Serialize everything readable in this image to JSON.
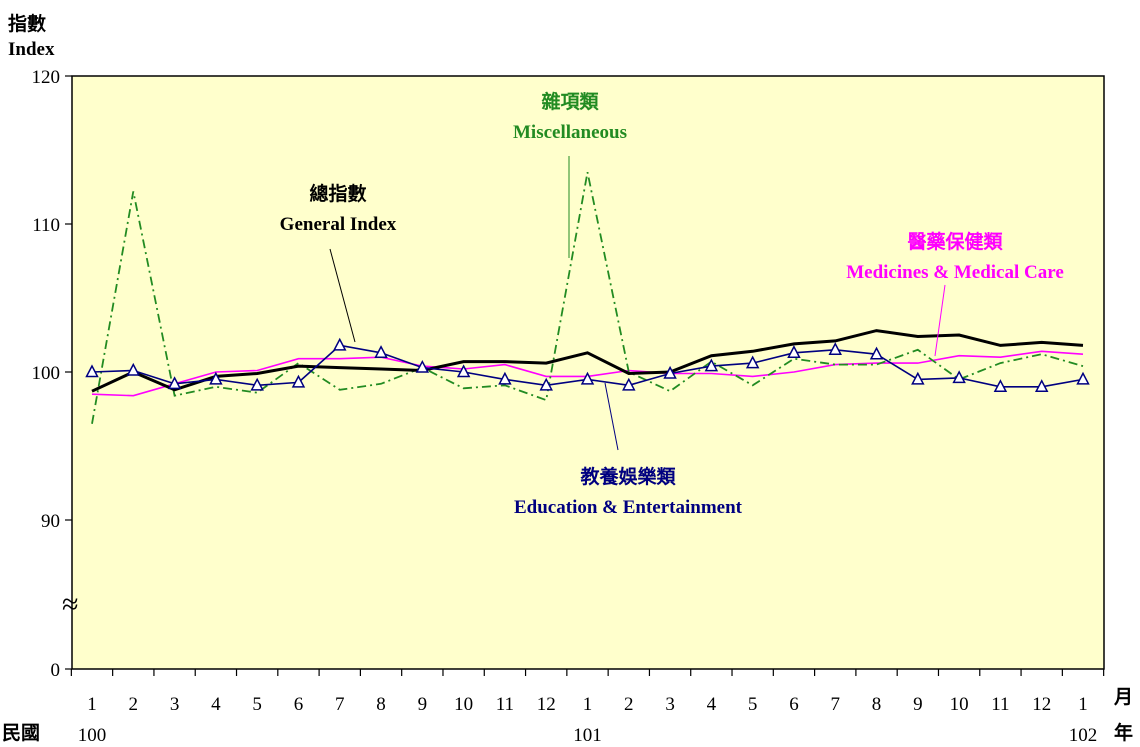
{
  "chart_data": {
    "type": "line",
    "y_axis_label": [
      "指數",
      "Index"
    ],
    "y_ticks": [
      "120",
      "110",
      "100",
      "90",
      "0"
    ],
    "axis_break_symbol": "≈",
    "ylim": [
      0,
      120
    ],
    "x_month_labels": [
      "1",
      "2",
      "3",
      "4",
      "5",
      "6",
      "7",
      "8",
      "9",
      "10",
      "11",
      "12",
      "1",
      "2",
      "3",
      "4",
      "5",
      "6",
      "7",
      "8",
      "9",
      "10",
      "11",
      "12",
      "1"
    ],
    "x_year_labels": [
      "100",
      "101",
      "102"
    ],
    "x_prefix_label": "民國",
    "x_unit_labels": [
      "月",
      "年"
    ],
    "plot_background": "#ffffcc",
    "series": [
      {
        "name": "總指數 General Index",
        "label_zh": "總指數",
        "label_en": "General Index",
        "color": "#000000",
        "style": "solid-thick",
        "values": [
          98.7,
          100.0,
          98.8,
          99.7,
          99.9,
          100.4,
          100.3,
          100.2,
          100.1,
          100.7,
          100.7,
          100.6,
          101.3,
          99.9,
          100.0,
          101.1,
          101.4,
          101.9,
          102.1,
          102.8,
          102.4,
          102.5,
          101.8,
          102.0,
          101.8
        ]
      },
      {
        "name": "雜項類 Miscellaneous",
        "label_zh": "雜項類",
        "label_en": "Miscellaneous",
        "color": "#228b22",
        "style": "dash-dot",
        "values": [
          96.5,
          112.2,
          98.4,
          99.0,
          98.6,
          100.6,
          98.8,
          99.2,
          100.3,
          98.9,
          99.1,
          98.1,
          113.5,
          100.0,
          98.7,
          100.7,
          99.1,
          100.9,
          100.5,
          100.5,
          101.5,
          99.5,
          100.6,
          101.2,
          100.4
        ]
      },
      {
        "name": "醫藥保健類 Medicines & Medical Care",
        "label_zh": "醫藥保健類",
        "label_en": "Medicines & Medical Care",
        "color": "#ff00ff",
        "style": "solid-thin",
        "values": [
          98.5,
          98.4,
          99.2,
          100.0,
          100.1,
          100.9,
          100.9,
          101.0,
          100.4,
          100.2,
          100.5,
          99.7,
          99.7,
          100.1,
          99.9,
          99.9,
          99.7,
          100.0,
          100.5,
          100.6,
          100.6,
          101.1,
          101.0,
          101.4,
          101.2
        ]
      },
      {
        "name": "教養娛樂類 Education & Entertainment",
        "label_zh": "教養娛樂類",
        "label_en": "Education & Entertainment",
        "color": "#000080",
        "style": "solid-triangle",
        "values": [
          100.0,
          100.1,
          99.2,
          99.5,
          99.1,
          99.3,
          101.8,
          101.3,
          100.3,
          100.0,
          99.5,
          99.1,
          99.5,
          99.1,
          99.9,
          100.4,
          100.6,
          101.3,
          101.5,
          101.2,
          99.5,
          99.6,
          99.0,
          99.0,
          99.5
        ]
      }
    ]
  }
}
